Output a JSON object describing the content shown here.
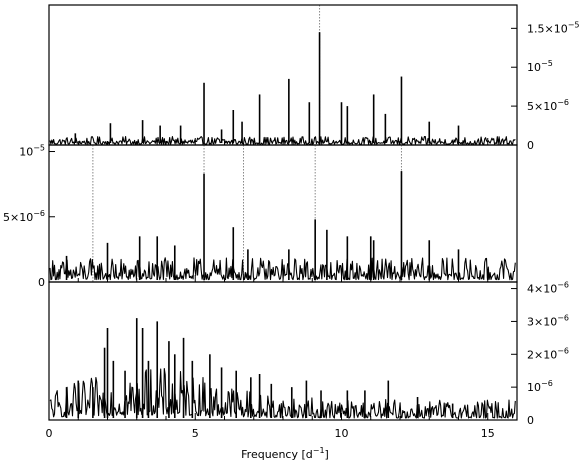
{
  "chart_data": {
    "type": "line",
    "layout": "three vertically stacked panels with shared x axis",
    "xlabel_text": "Frequency [d",
    "xlabel_exponent": "−1",
    "xlabel_close": "]",
    "xlim": [
      0,
      16
    ],
    "x_ticks": [
      0,
      5,
      10,
      15
    ],
    "panels": [
      {
        "id": "top",
        "y_axis_side": "right",
        "ylim": [
          0,
          1.8e-05
        ],
        "y_ticks": [
          {
            "value": 0,
            "mantissa": "0",
            "exponent": ""
          },
          {
            "value": 5e-06,
            "mantissa": "5×10",
            "exponent": "−6"
          },
          {
            "value": 1e-05,
            "mantissa": "10",
            "exponent": "−5"
          },
          {
            "value": 1.5e-05,
            "mantissa": "1.5×10",
            "exponent": "−5"
          }
        ],
        "noise_level": 7e-07,
        "markers": [
          9.25
        ],
        "peaks": [
          {
            "x": 0.9,
            "y": 1.5e-06
          },
          {
            "x": 2.1,
            "y": 2.8e-06
          },
          {
            "x": 3.2,
            "y": 3.2e-06
          },
          {
            "x": 3.8,
            "y": 2.5e-06
          },
          {
            "x": 4.5,
            "y": 2.5e-06
          },
          {
            "x": 5.3,
            "y": 8e-06
          },
          {
            "x": 5.9,
            "y": 2e-06
          },
          {
            "x": 6.3,
            "y": 4.5e-06
          },
          {
            "x": 6.6,
            "y": 3e-06
          },
          {
            "x": 7.2,
            "y": 6.5e-06
          },
          {
            "x": 8.2,
            "y": 8.5e-06
          },
          {
            "x": 8.9,
            "y": 5.5e-06
          },
          {
            "x": 9.25,
            "y": 1.45e-05
          },
          {
            "x": 10.0,
            "y": 5.5e-06
          },
          {
            "x": 10.2,
            "y": 5e-06
          },
          {
            "x": 11.1,
            "y": 6.5e-06
          },
          {
            "x": 11.5,
            "y": 4e-06
          },
          {
            "x": 12.05,
            "y": 8.8e-06
          },
          {
            "x": 13.0,
            "y": 3e-06
          },
          {
            "x": 14.0,
            "y": 2.5e-06
          }
        ]
      },
      {
        "id": "middle",
        "y_axis_side": "left",
        "ylim": [
          0,
          1.05e-05
        ],
        "y_ticks": [
          {
            "value": 0,
            "mantissa": "0",
            "exponent": ""
          },
          {
            "value": 5e-06,
            "mantissa": "5×10",
            "exponent": "−6"
          },
          {
            "value": 1e-05,
            "mantissa": "10",
            "exponent": "−5"
          }
        ],
        "noise_level": 1.2e-06,
        "markers": [
          1.5,
          5.3,
          6.65,
          9.1,
          12.05
        ],
        "peaks": [
          {
            "x": 0.6,
            "y": 2e-06
          },
          {
            "x": 2.0,
            "y": 3e-06
          },
          {
            "x": 3.1,
            "y": 3.5e-06
          },
          {
            "x": 3.7,
            "y": 3.5e-06
          },
          {
            "x": 4.3,
            "y": 2.8e-06
          },
          {
            "x": 5.3,
            "y": 8.3e-06
          },
          {
            "x": 6.3,
            "y": 4.2e-06
          },
          {
            "x": 6.8,
            "y": 2.5e-06
          },
          {
            "x": 8.2,
            "y": 2.5e-06
          },
          {
            "x": 9.1,
            "y": 4.8e-06
          },
          {
            "x": 9.5,
            "y": 4e-06
          },
          {
            "x": 10.2,
            "y": 3.5e-06
          },
          {
            "x": 11.0,
            "y": 3.5e-06
          },
          {
            "x": 11.1,
            "y": 3.2e-06
          },
          {
            "x": 12.05,
            "y": 8.5e-06
          },
          {
            "x": 13.0,
            "y": 3.2e-06
          },
          {
            "x": 14.0,
            "y": 2.5e-06
          },
          {
            "x": 15.0,
            "y": 1e-06
          }
        ]
      },
      {
        "id": "bottom",
        "y_axis_side": "right",
        "ylim": [
          0,
          4.2e-06
        ],
        "y_ticks": [
          {
            "value": 0,
            "mantissa": "0",
            "exponent": ""
          },
          {
            "value": 1e-06,
            "mantissa": "10",
            "exponent": "−6"
          },
          {
            "value": 2e-06,
            "mantissa": "2×10",
            "exponent": "−6"
          },
          {
            "value": 3e-06,
            "mantissa": "3×10",
            "exponent": "−6"
          },
          {
            "value": 4e-06,
            "mantissa": "4×10",
            "exponent": "−6"
          }
        ],
        "noise_level": 4e-07,
        "markers": [],
        "peaks": [
          {
            "x": 0.6,
            "y": 1e-06
          },
          {
            "x": 1.0,
            "y": 1.2e-06
          },
          {
            "x": 1.5,
            "y": 1e-06
          },
          {
            "x": 1.9,
            "y": 2.2e-06
          },
          {
            "x": 2.0,
            "y": 2.8e-06
          },
          {
            "x": 2.2,
            "y": 1.8e-06
          },
          {
            "x": 2.6,
            "y": 1.5e-06
          },
          {
            "x": 3.0,
            "y": 3.1e-06
          },
          {
            "x": 3.2,
            "y": 2.8e-06
          },
          {
            "x": 3.4,
            "y": 1.8e-06
          },
          {
            "x": 3.7,
            "y": 3e-06
          },
          {
            "x": 4.1,
            "y": 2.4e-06
          },
          {
            "x": 4.3,
            "y": 2e-06
          },
          {
            "x": 4.6,
            "y": 2.5e-06
          },
          {
            "x": 4.9,
            "y": 1.8e-06
          },
          {
            "x": 5.5,
            "y": 2e-06
          },
          {
            "x": 5.9,
            "y": 1.6e-06
          },
          {
            "x": 6.4,
            "y": 1.5e-06
          },
          {
            "x": 6.9,
            "y": 1.3e-06
          },
          {
            "x": 7.2,
            "y": 1.4e-06
          },
          {
            "x": 7.6,
            "y": 1.1e-06
          },
          {
            "x": 8.3,
            "y": 1e-06
          },
          {
            "x": 8.8,
            "y": 1.2e-06
          },
          {
            "x": 9.3,
            "y": 9e-07
          },
          {
            "x": 10.2,
            "y": 9e-07
          },
          {
            "x": 10.8,
            "y": 9e-07
          },
          {
            "x": 11.6,
            "y": 1.2e-06
          },
          {
            "x": 12.6,
            "y": 7e-07
          },
          {
            "x": 13.8,
            "y": 5e-07
          }
        ]
      }
    ]
  }
}
